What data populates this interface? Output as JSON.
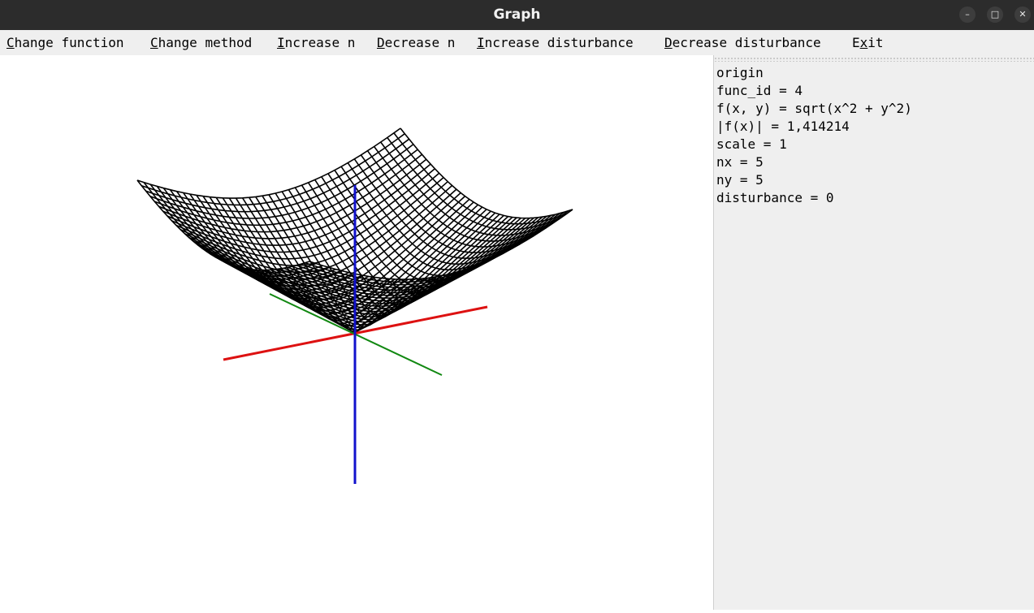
{
  "window": {
    "title": "Graph",
    "controls": {
      "minimize": "–",
      "maximize": "□",
      "close": "✕"
    }
  },
  "menu": [
    {
      "accel": "C",
      "rest": "hange function"
    },
    {
      "accel": "C",
      "rest": "hange method"
    },
    {
      "accel": "I",
      "rest": "ncrease n"
    },
    {
      "accel": "D",
      "rest": "ecrease n"
    },
    {
      "accel": "I",
      "rest": "ncrease disturbance"
    },
    {
      "accel": "D",
      "rest": "ecrease disturbance"
    },
    {
      "pre": "E",
      "accel": "x",
      "rest": "it"
    }
  ],
  "info": {
    "method": "origin",
    "func_id": "func_id = 4",
    "formula": "f(x, y) = sqrt(x^2 + y^2)",
    "norm": "|f(x)| = 1,414214",
    "scale": "scale = 1",
    "nx": "nx = 5",
    "ny": "ny = 5",
    "disturbance": "disturbance = 0"
  },
  "colors": {
    "x_axis": "#dd1111",
    "y_axis": "#118811",
    "z_axis": "#1111cc",
    "mesh": "#000000"
  },
  "plot": {
    "type": "3d-wireframe-surface",
    "function": "sqrt(x^2 + y^2)",
    "domain_x": [
      -1,
      1
    ],
    "domain_y": [
      -1,
      1
    ],
    "max_abs_value": 1.414214
  }
}
